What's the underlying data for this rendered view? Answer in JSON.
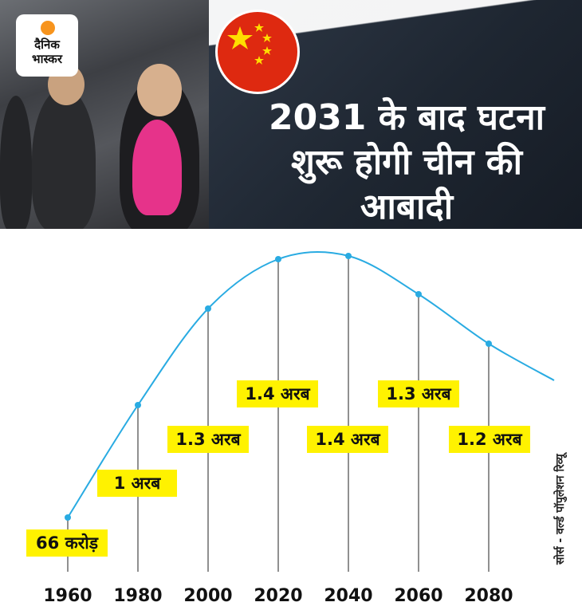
{
  "brand": {
    "line1": "दैनिक",
    "line2": "भास्कर"
  },
  "headline": {
    "line1": "2031 के बाद घटना",
    "line2": "शुरू होगी चीन की",
    "line3": "आबादी"
  },
  "source": "सोर्स - वर्ल्ड पॉपुलेशन रिव्यू",
  "colors": {
    "line": "#29abe2",
    "label_bg": "#fff200",
    "flag_red": "#de2910",
    "flag_star": "#ffde00",
    "logo_sun": "#f7941d"
  },
  "chart_data": {
    "type": "line",
    "title": "",
    "xlabel": "",
    "ylabel": "",
    "x": [
      1960,
      1980,
      2000,
      2020,
      2040,
      2060,
      2080
    ],
    "values": [
      0.66,
      1.0,
      1.3,
      1.4,
      1.4,
      1.3,
      1.2
    ],
    "value_labels": [
      "66 करोड़",
      "1 अरब",
      "1.3 अरब",
      "1.4 अरब",
      "1.4 अरब",
      "1.3 अरब",
      "1.2 अरब"
    ],
    "tick_labels": [
      "1960",
      "1980",
      "2000",
      "2020",
      "2040",
      "2060",
      "2080"
    ],
    "grid": false,
    "legend": "none"
  }
}
